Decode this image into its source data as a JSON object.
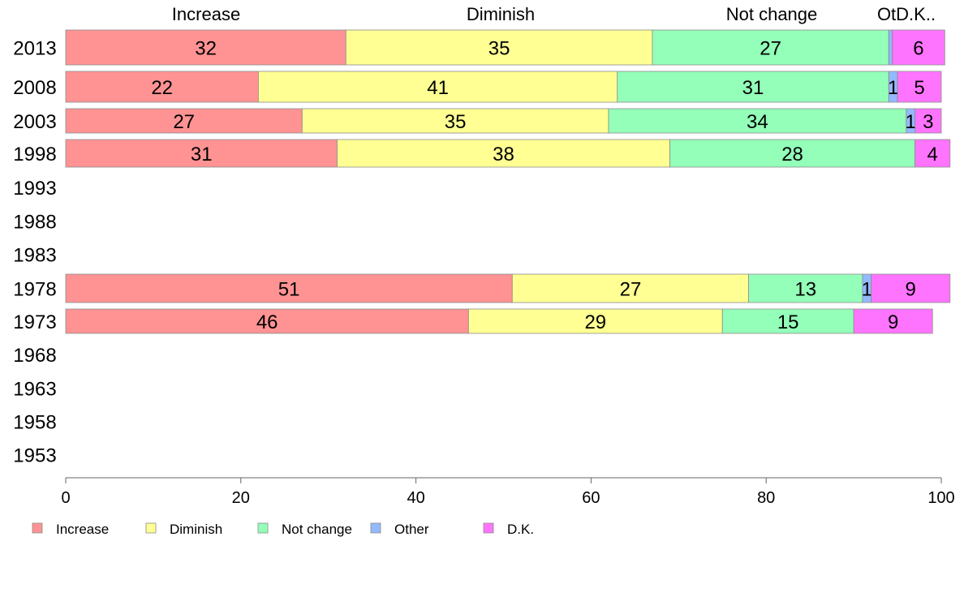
{
  "chart_data": {
    "type": "bar",
    "orientation": "horizontal",
    "stacked": true,
    "categories": [
      "2013",
      "2008",
      "2003",
      "1998",
      "1993",
      "1988",
      "1983",
      "1978",
      "1973",
      "1968",
      "1963",
      "1958",
      "1953"
    ],
    "series": [
      {
        "name": "Increase",
        "color": "#ff9393",
        "values": [
          32,
          22,
          27,
          31,
          null,
          null,
          null,
          51,
          46,
          null,
          null,
          null,
          null
        ]
      },
      {
        "name": "Diminish",
        "color": "#ffff93",
        "values": [
          35,
          41,
          35,
          38,
          null,
          null,
          null,
          27,
          29,
          null,
          null,
          null,
          null
        ]
      },
      {
        "name": "Not change",
        "color": "#93ffb9",
        "values": [
          27,
          31,
          34,
          28,
          null,
          null,
          null,
          13,
          15,
          null,
          null,
          null,
          null
        ]
      },
      {
        "name": "Other",
        "color": "#93b9ff",
        "values": [
          0.4,
          1,
          1,
          0,
          null,
          null,
          null,
          1,
          0,
          null,
          null,
          null,
          null
        ]
      },
      {
        "name": "D.K.",
        "color": "#ff74ff",
        "values": [
          6,
          5,
          3,
          4,
          null,
          null,
          null,
          9,
          9,
          null,
          null,
          null,
          null
        ]
      }
    ],
    "data_labels": [
      [
        "32",
        "35",
        "27",
        "",
        "6"
      ],
      [
        "22",
        "41",
        "31",
        "1",
        "5"
      ],
      [
        "27",
        "35",
        "34",
        "1",
        "3"
      ],
      [
        "31",
        "38",
        "28",
        "",
        "4"
      ],
      null,
      null,
      null,
      [
        "51",
        "27",
        "13",
        "1",
        "9"
      ],
      [
        "46",
        "29",
        "15",
        "",
        "9"
      ],
      null,
      null,
      null,
      null
    ],
    "top_labels": [
      "Increase",
      "Diminish",
      "Not change",
      "OtD.K.."
    ],
    "xticks": [
      "0",
      "20",
      "40",
      "60",
      "80",
      "100"
    ],
    "xlim": [
      0,
      100
    ],
    "legend": [
      "Increase",
      "Diminish",
      "Not change",
      "Other",
      "D.K."
    ],
    "legend_position": "bottom-left",
    "grid": false
  }
}
